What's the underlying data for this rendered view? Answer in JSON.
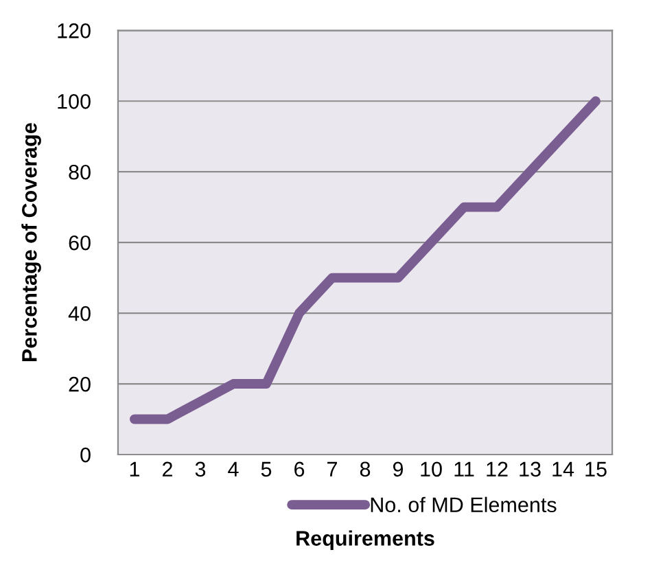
{
  "chart_data": {
    "type": "line",
    "xlabel": "Requirements",
    "ylabel": "Percentage of Coverage",
    "categories": [
      "1",
      "2",
      "3",
      "4",
      "5",
      "6",
      "7",
      "8",
      "9",
      "10",
      "11",
      "12",
      "13",
      "14",
      "15"
    ],
    "series": [
      {
        "name": "No. of MD Elements",
        "color": "#7b5e91",
        "values": [
          10,
          10,
          15,
          20,
          20,
          40,
          50,
          50,
          50,
          60,
          70,
          70,
          80,
          90,
          100
        ]
      }
    ],
    "ylim": [
      0,
      120
    ],
    "yticks": [
      0,
      20,
      40,
      60,
      80,
      100,
      120
    ],
    "grid": "y",
    "legend": "bottom",
    "marker": "none",
    "line_style": "solid"
  }
}
